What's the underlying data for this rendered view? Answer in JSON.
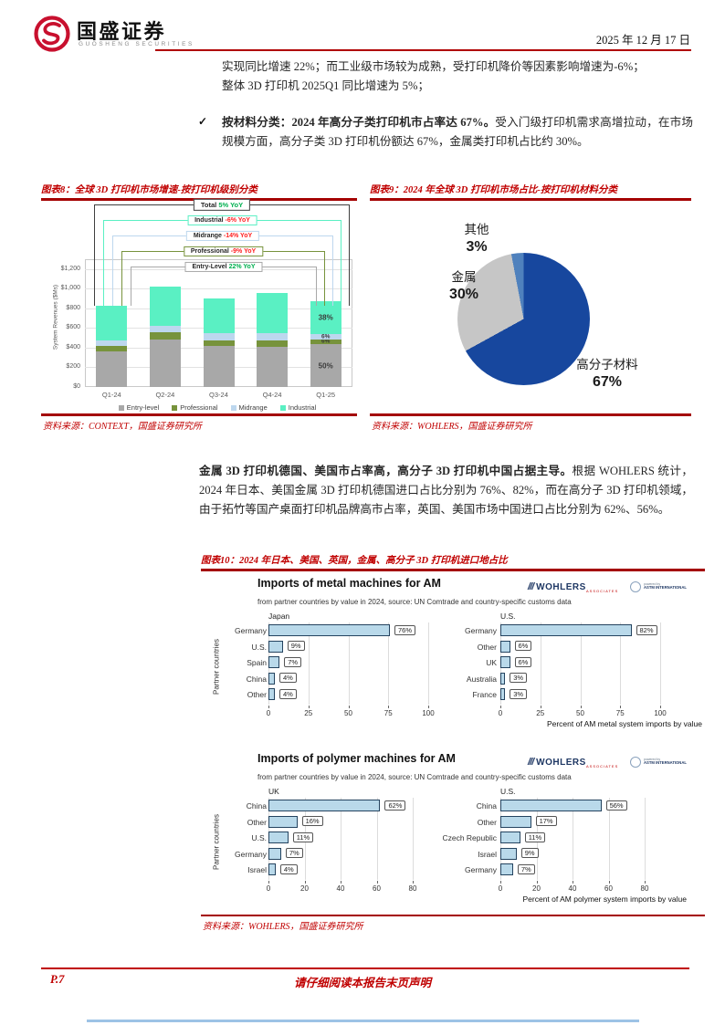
{
  "page": {
    "accent_red": "#c00000",
    "rule_red": "#a40000",
    "bottom_strip_blue": "#9dc3e6"
  },
  "header": {
    "brand_cn": "国盛证券",
    "brand_en": "GUOSHENG SECURITIES",
    "date": "2025 年 12 月 17 日"
  },
  "intro": {
    "line1": "实现同比增速 22%；而工业级市场较为成熟，受打印机降价等因素影响增速为-6%；",
    "line2": "整体 3D 打印机 2025Q1 同比增速为 5%；"
  },
  "bullet": {
    "marker": "✓",
    "lead": "按材料分类：2024 年高分子类打印机市占率达 67%。",
    "rest": "受入门级打印机需求高增拉动，在市场规模方面，高分子类 3D 打印机份额达 67%，金属类打印机占比约 30%。"
  },
  "paragraph": {
    "lead": "金属 3D 打印机德国、美国市占率高，高分子 3D 打印机中国占据主导。",
    "rest": "根据 WOHLERS 统计，2024 年日本、美国金属 3D 打印机德国进口占比分别为 76%、82%，而在高分子 3D 打印机领域，由于拓竹等国产桌面打印机品牌高市占率，英国、美国市场中国进口占比分别为 62%、56%。"
  },
  "figures": {
    "fig8": {
      "title": "图表8：全球 3D 打印机市场增速-按打印机级别分类",
      "source": "资料来源：CONTEXT，国盛证券研究所"
    },
    "fig9": {
      "title": "图表9：2024 年全球 3D 打印机市场占比-按打印机材料分类",
      "source": "资料来源：WOHLERS，国盛证券研究所"
    },
    "fig10": {
      "title": "图表10：2024 年日本、美国、英国，金属、高分子 3D 打印机进口地占比",
      "source": "资料来源：WOHLERS，国盛证券研究所"
    }
  },
  "footer": {
    "page_label": "P.7",
    "disclaimer": "请仔细阅读本报告末页声明"
  },
  "chart_data": [
    {
      "id": "fig8",
      "type": "bar",
      "stacked": true,
      "title": "全球 3D 打印机市场增速-按打印机级别分类",
      "categories": [
        "Q1-24",
        "Q2-24",
        "Q3-24",
        "Q4-24",
        "Q1-25"
      ],
      "series": [
        {
          "name": "Entry-level",
          "color": "#a8a8a8",
          "values": [
            360,
            485,
            420,
            410,
            435
          ]
        },
        {
          "name": "Professional",
          "color": "#77933c",
          "values": [
            55,
            70,
            55,
            60,
            50
          ]
        },
        {
          "name": "Midrange",
          "color": "#bdd7ee",
          "values": [
            60,
            65,
            70,
            75,
            52
          ]
        },
        {
          "name": "Industrial",
          "color": "#5af0c3",
          "values": [
            350,
            400,
            360,
            410,
            332
          ]
        }
      ],
      "last_category_segment_labels": [
        "50%",
        "6%",
        "6%",
        "38%"
      ],
      "ylabel": "System Revenues ($Ms)",
      "yticks": [
        0,
        200,
        400,
        600,
        800,
        1000,
        1200
      ],
      "ytick_labels": [
        "$0",
        "$200",
        "$400",
        "$600",
        "$800",
        "$1,000",
        "$1,200"
      ],
      "ymax_display": 1300,
      "legend_position": "bottom",
      "annotations": [
        {
          "label": "Total",
          "value": "5% YoY",
          "box_color": "#3f3f3f",
          "value_color": "#00b050"
        },
        {
          "label": "Industrial",
          "value": "-6% YoY",
          "box_color": "#5af0c3",
          "value_color": "#ff2020"
        },
        {
          "label": "Midrange",
          "value": "-14% YoY",
          "box_color": "#bdd7ee",
          "value_color": "#ff2020"
        },
        {
          "label": "Professional",
          "value": "-9% YoY",
          "box_color": "#77933c",
          "value_color": "#ff2020"
        },
        {
          "label": "Entry-Level",
          "value": "22% YoY",
          "box_color": "#a8a8a8",
          "value_color": "#00b050"
        }
      ]
    },
    {
      "id": "fig9",
      "type": "pie",
      "title": "2024 年全球 3D 打印机市场占比-按打印机材料分类",
      "slices": [
        {
          "label": "高分子材料",
          "pct": 67,
          "color": "#17479e"
        },
        {
          "label": "金属",
          "pct": 30,
          "color": "#c6c6c6"
        },
        {
          "label": "其他",
          "pct": 3,
          "color": "#4f81bd"
        }
      ]
    },
    {
      "id": "fig10",
      "type": "bar-group",
      "ylabel": "Partner countries",
      "logo": {
        "wohlers": "WOHLERS",
        "wohlers_sub": "ASSOCIATES",
        "astm_line1": "powered by",
        "astm_line2": "ASTM INTERNATIONAL"
      },
      "sections": [
        {
          "title": "Imports of metal machines for AM",
          "subtitle": "from partner countries by value in 2024, source: UN Comtrade and country-specific customs data",
          "axis_label": "Percent of AM metal system imports by value",
          "ticks": [
            0,
            25,
            50,
            75,
            100
          ],
          "bar_color": "#b9d9ea",
          "panels": [
            {
              "region": "Japan",
              "rows": [
                {
                  "label": "Germany",
                  "value": 76
                },
                {
                  "label": "U.S.",
                  "value": 9
                },
                {
                  "label": "Spain",
                  "value": 7
                },
                {
                  "label": "China",
                  "value": 4
                },
                {
                  "label": "Other",
                  "value": 4
                }
              ]
            },
            {
              "region": "U.S.",
              "rows": [
                {
                  "label": "Germany",
                  "value": 82
                },
                {
                  "label": "Other",
                  "value": 6
                },
                {
                  "label": "UK",
                  "value": 6
                },
                {
                  "label": "Australia",
                  "value": 3
                },
                {
                  "label": "France",
                  "value": 3
                }
              ]
            }
          ]
        },
        {
          "title": "Imports of polymer machines for AM",
          "subtitle": "from partner countries by value in 2024, source: UN Comtrade and country-specific customs data",
          "axis_label": "Percent of AM polymer system imports by value",
          "ticks": [
            0,
            20,
            40,
            60,
            80
          ],
          "bar_color": "#b9d9ea",
          "panels": [
            {
              "region": "UK",
              "rows": [
                {
                  "label": "China",
                  "value": 62
                },
                {
                  "label": "Other",
                  "value": 16
                },
                {
                  "label": "U.S.",
                  "value": 11
                },
                {
                  "label": "Germany",
                  "value": 7
                },
                {
                  "label": "Israel",
                  "value": 4
                }
              ]
            },
            {
              "region": "U.S.",
              "rows": [
                {
                  "label": "China",
                  "value": 56
                },
                {
                  "label": "Other",
                  "value": 17
                },
                {
                  "label": "Czech Republic",
                  "value": 11
                },
                {
                  "label": "Israel",
                  "value": 9
                },
                {
                  "label": "Germany",
                  "value": 7
                }
              ]
            }
          ]
        }
      ]
    }
  ]
}
